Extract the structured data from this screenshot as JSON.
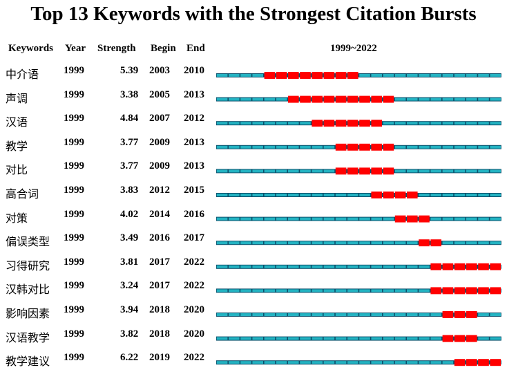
{
  "chart_data": {
    "type": "table",
    "title": "Top 13 Keywords with the Strongest Citation Bursts",
    "columns": [
      "Keywords",
      "Year",
      "Strength",
      "Begin",
      "End",
      "1999~2022"
    ],
    "range_start": 1999,
    "range_end": 2022,
    "colors": {
      "burst": "#ff0000",
      "normal": "#23b3c2",
      "band": "#0a4f6b"
    },
    "rows": [
      {
        "keyword": "中介语",
        "year": "1999",
        "strength": "5.39",
        "begin": "2003",
        "end": "2010"
      },
      {
        "keyword": "声调",
        "year": "1999",
        "strength": "3.38",
        "begin": "2005",
        "end": "2013"
      },
      {
        "keyword": "汉语",
        "year": "1999",
        "strength": "4.84",
        "begin": "2007",
        "end": "2012"
      },
      {
        "keyword": "教学",
        "year": "1999",
        "strength": "3.77",
        "begin": "2009",
        "end": "2013"
      },
      {
        "keyword": "对比",
        "year": "1999",
        "strength": "3.77",
        "begin": "2009",
        "end": "2013"
      },
      {
        "keyword": "高合词",
        "year": "1999",
        "strength": "3.83",
        "begin": "2012",
        "end": "2015"
      },
      {
        "keyword": "对策",
        "year": "1999",
        "strength": "4.02",
        "begin": "2014",
        "end": "2016"
      },
      {
        "keyword": "偏误类型",
        "year": "1999",
        "strength": "3.49",
        "begin": "2016",
        "end": "2017"
      },
      {
        "keyword": "习得研究",
        "year": "1999",
        "strength": "3.81",
        "begin": "2017",
        "end": "2022"
      },
      {
        "keyword": "汉韩对比",
        "year": "1999",
        "strength": "3.24",
        "begin": "2017",
        "end": "2022"
      },
      {
        "keyword": "影响因素",
        "year": "1999",
        "strength": "3.94",
        "begin": "2018",
        "end": "2020"
      },
      {
        "keyword": "汉语教学",
        "year": "1999",
        "strength": "3.82",
        "begin": "2018",
        "end": "2020"
      },
      {
        "keyword": "教学建议",
        "year": "1999",
        "strength": "6.22",
        "begin": "2019",
        "end": "2022"
      }
    ]
  }
}
